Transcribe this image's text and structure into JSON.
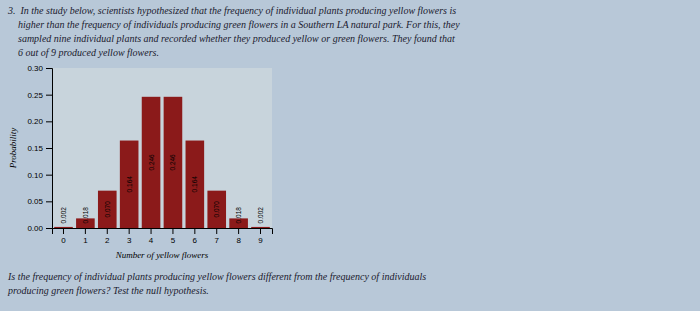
{
  "chart_data": {
    "type": "bar",
    "annotations": [
      "3.  In the study below, scientists hypothesized that the frequency of individual plants producing yellow flowers is\n    higher than the frequency of individuals producing green flowers in a Southern LA natural park. For this, they\n    sampled nine individual plants and recorded whether they produced yellow or green flowers. They found that\n    6 out of 9 produced yellow flowers.",
      "Is the frequency of individual plants producing yellow flowers different from the frequency of individuals\nproducing green flowers? Test the null hypothesis."
    ],
    "x_label": "Number of yellow flowers",
    "y_label": "Probability",
    "categories": [
      0,
      1,
      2,
      3,
      4,
      5,
      6,
      7,
      8,
      9
    ],
    "values": [
      0.002,
      0.018,
      0.07,
      0.164,
      0.246,
      0.246,
      0.164,
      0.07,
      0.018,
      0.002
    ],
    "value_labels": [
      "0.002",
      "0.018",
      "0.070",
      "0.164",
      "0.246",
      "0.246",
      "0.164",
      "0.070",
      "0.018",
      "0.002"
    ],
    "data_labels": true,
    "color": "#8B1A1A",
    "ylim": [
      0,
      0.3
    ],
    "yticks": [
      {
        "value": 0.0,
        "label": "0.00"
      },
      {
        "value": 0.05,
        "label": "0.05"
      },
      {
        "value": 0.1,
        "label": "0.10"
      },
      {
        "value": 0.15,
        "label": "0.15"
      },
      {
        "value": 0.2,
        "label": "0.20"
      },
      {
        "value": 0.25,
        "label": "0.25"
      },
      {
        "value": 0.3,
        "label": "0.30"
      }
    ],
    "grid": false
  }
}
